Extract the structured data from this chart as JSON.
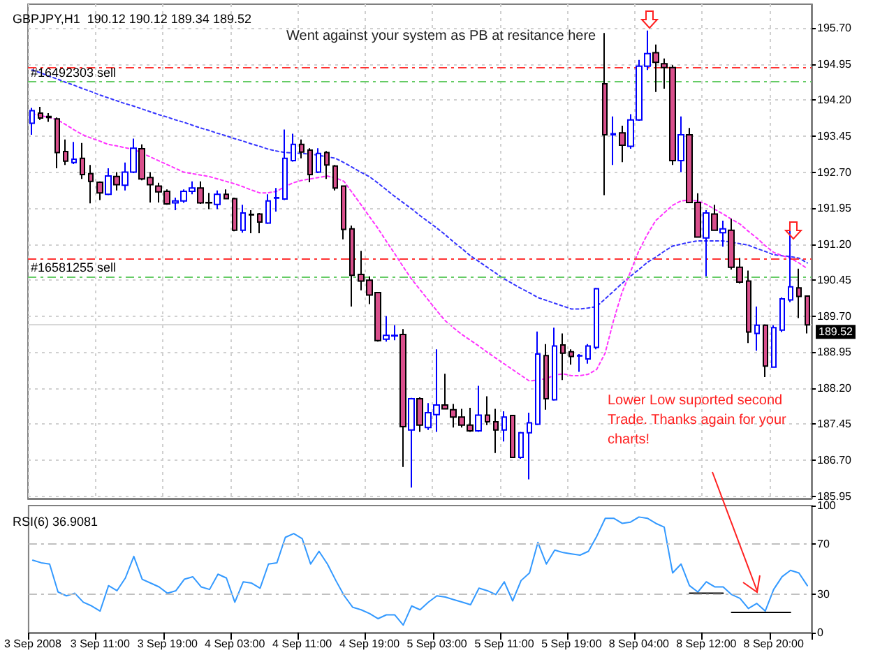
{
  "chart_data": [
    {
      "type": "candlestick",
      "title": "GBPJPY,H1  190.12 190.12 189.34 189.52",
      "annotations": [
        "Went against your system as PB at resitance here",
        "Lower Low suported second Trade. Thanks again for your charts!"
      ],
      "categories": [
        null,
        null,
        null,
        null,
        null,
        null,
        null,
        null,
        null,
        null,
        null,
        null,
        null,
        null,
        null,
        null,
        null,
        null,
        null,
        null,
        null,
        null,
        null,
        null,
        null,
        null,
        null,
        null,
        null,
        null,
        null,
        null,
        null,
        null,
        null,
        null,
        null,
        null,
        null,
        null,
        null,
        null,
        null,
        null,
        null,
        null,
        null,
        null,
        null,
        null,
        null,
        null,
        null,
        null,
        null,
        null,
        null,
        null,
        null,
        null,
        null,
        null,
        null,
        null,
        null,
        null,
        null,
        null,
        null,
        null,
        null,
        null,
        null,
        null,
        null,
        null,
        null,
        null,
        null,
        null,
        null,
        null,
        null,
        null,
        null,
        null,
        null,
        null,
        null,
        null,
        null,
        null,
        null
      ],
      "ylim": [
        185.9,
        196.2
      ],
      "yticks": [
        {
          "value": 185.95,
          "label": "185.95"
        },
        {
          "value": 186.7,
          "label": "186.70"
        },
        {
          "value": 187.45,
          "label": "187.45"
        },
        {
          "value": 188.2,
          "label": "188.20"
        },
        {
          "value": 188.95,
          "label": "188.95"
        },
        {
          "value": 189.7,
          "label": "189.70"
        },
        {
          "value": 190.45,
          "label": "190.45"
        },
        {
          "value": 191.2,
          "label": "191.20"
        },
        {
          "value": 191.95,
          "label": "191.95"
        },
        {
          "value": 192.7,
          "label": "192.70"
        },
        {
          "value": 193.45,
          "label": "193.45"
        },
        {
          "value": 194.2,
          "label": "194.20"
        },
        {
          "value": 194.95,
          "label": "194.95"
        },
        {
          "value": 195.7,
          "label": "195.70"
        }
      ],
      "grid": true,
      "tick_labels": "y",
      "marker": "none",
      "series": [
        {
          "colors": [
            "#0000ff",
            "#d94f8c",
            "#d94f8c",
            "#d94f8c",
            "#d94f8c",
            "#0000ff",
            "#d94f8c",
            "#d94f8c",
            "#d94f8c",
            "#0000ff",
            "#d94f8c",
            "#0000ff",
            "#0000ff",
            "#d94f8c",
            "#d94f8c",
            "#d94f8c",
            "#d94f8c",
            "#0000ff",
            "#0000ff",
            "#0000ff",
            "#d94f8c",
            "#d94f8c",
            "#0000ff",
            "#d94f8c",
            "#d94f8c",
            "#0000ff",
            "#d94f8c",
            "#d94f8c",
            "#0000ff",
            "#0000ff",
            "#0000ff",
            "#0000ff",
            "#d94f8c",
            "#d94f8c",
            "#0000ff",
            "#d94f8c",
            "#d94f8c",
            "#d94f8c",
            "#d94f8c",
            "#d94f8c",
            "#d94f8c",
            "#d94f8c",
            "#0000ff",
            "#0000ff",
            "#d94f8c",
            "#0000ff",
            "#d94f8c",
            "#0000ff",
            "#0000ff",
            "#d94f8c",
            "#d94f8c",
            "#d94f8c",
            "#d94f8c",
            "#0000ff",
            "#d94f8c",
            "#d94f8c",
            "#0000ff",
            "#d94f8c",
            "#0000ff",
            "#0000ff",
            "#0000ff",
            "#d94f8c",
            "#0000ff",
            "#d94f8c",
            "#d94f8c",
            "#0000ff",
            "#0000ff",
            "#0000ff",
            "#d94f8c",
            "#0000ff",
            "#d94f8c",
            "#0000ff",
            "#0000ff",
            "#0000ff",
            "#d94f8c",
            "#d94f8c",
            "#d94f8c",
            "#0000ff",
            "#d94f8c",
            "#d94f8c",
            "#0000ff",
            "#d94f8c",
            "#0000ff",
            "#d94f8c",
            "#d94f8c",
            "#d94f8c",
            "#0000ff",
            "#d94f8c",
            "#0000ff",
            "#0000ff",
            "#0000ff",
            "#d94f8c",
            "#d94f8c"
          ],
          "ohlc": [
            [
              193.72,
              194.04,
              193.48,
              193.98
            ],
            [
              193.93,
              194.06,
              193.79,
              193.83
            ],
            [
              193.86,
              193.93,
              193.75,
              193.84
            ],
            [
              193.81,
              193.84,
              192.78,
              193.11
            ],
            [
              193.13,
              193.38,
              192.85,
              192.93
            ],
            [
              192.9,
              193.33,
              192.87,
              192.97
            ],
            [
              192.99,
              193.31,
              192.56,
              192.65
            ],
            [
              192.67,
              192.85,
              192.05,
              192.51
            ],
            [
              192.49,
              192.51,
              192.12,
              192.27
            ],
            [
              192.24,
              192.78,
              192.22,
              192.62
            ],
            [
              192.61,
              192.7,
              192.32,
              192.44
            ],
            [
              192.43,
              192.9,
              192.32,
              192.7
            ],
            [
              192.7,
              193.4,
              192.68,
              193.2
            ],
            [
              193.19,
              193.28,
              192.53,
              192.56
            ],
            [
              192.59,
              192.7,
              192.07,
              192.44
            ],
            [
              192.41,
              192.48,
              192.07,
              192.29
            ],
            [
              192.3,
              192.34,
              192.02,
              192.04
            ],
            [
              192.06,
              192.17,
              191.91,
              192.1
            ],
            [
              192.1,
              192.34,
              192.06,
              192.3
            ],
            [
              192.3,
              192.51,
              192.24,
              192.37
            ],
            [
              192.37,
              192.51,
              192.04,
              192.06
            ],
            [
              192.07,
              192.27,
              191.93,
              192.06
            ],
            [
              192.03,
              192.32,
              191.93,
              192.24
            ],
            [
              192.24,
              192.34,
              192.14,
              192.15
            ],
            [
              192.15,
              192.17,
              191.47,
              191.49
            ],
            [
              191.49,
              192.02,
              191.44,
              191.85
            ],
            [
              191.82,
              191.91,
              191.43,
              191.81
            ],
            [
              191.83,
              191.85,
              191.43,
              191.66
            ],
            [
              191.64,
              192.24,
              191.62,
              192.1
            ],
            [
              192.16,
              192.37,
              191.88,
              192.17
            ],
            [
              192.14,
              193.59,
              192.12,
              192.99
            ],
            [
              192.94,
              193.5,
              192.92,
              193.28
            ],
            [
              193.28,
              193.38,
              192.99,
              193.12
            ],
            [
              193.16,
              193.2,
              192.49,
              192.65
            ],
            [
              192.7,
              193.2,
              192.68,
              193.09
            ],
            [
              193.11,
              193.14,
              192.56,
              192.85
            ],
            [
              192.83,
              192.85,
              192.32,
              192.37
            ],
            [
              192.41,
              192.41,
              191.3,
              191.51
            ],
            [
              191.52,
              191.59,
              189.9,
              190.55
            ],
            [
              190.57,
              191.06,
              190.24,
              190.43
            ],
            [
              190.45,
              190.53,
              189.95,
              190.14
            ],
            [
              190.19,
              190.19,
              189.17,
              189.19
            ],
            [
              189.22,
              189.7,
              189.17,
              189.3
            ],
            [
              189.29,
              189.51,
              189.2,
              189.3
            ],
            [
              189.32,
              189.43,
              186.56,
              187.4
            ],
            [
              187.33,
              188.0,
              186.13,
              187.98
            ],
            [
              187.98,
              188.01,
              187.29,
              187.43
            ],
            [
              187.38,
              187.89,
              187.33,
              187.69
            ],
            [
              187.65,
              189.01,
              187.29,
              187.85
            ],
            [
              187.85,
              188.5,
              187.77,
              187.77
            ],
            [
              187.75,
              187.87,
              187.38,
              187.6
            ],
            [
              187.6,
              187.77,
              187.38,
              187.43
            ],
            [
              187.43,
              187.79,
              187.29,
              187.31
            ],
            [
              187.31,
              188.25,
              187.29,
              187.64
            ],
            [
              187.64,
              188.03,
              187.43,
              187.5
            ],
            [
              187.5,
              187.77,
              186.85,
              187.33
            ],
            [
              187.33,
              187.72,
              187.09,
              187.6
            ],
            [
              187.63,
              187.63,
              186.76,
              186.76
            ],
            [
              186.76,
              187.29,
              186.73,
              187.27
            ],
            [
              187.27,
              187.69,
              186.3,
              187.48
            ],
            [
              187.45,
              189.38,
              187.43,
              188.91
            ],
            [
              188.88,
              189.12,
              187.75,
              187.98
            ],
            [
              187.96,
              189.46,
              187.94,
              189.08
            ],
            [
              189.1,
              189.34,
              188.37,
              188.93
            ],
            [
              188.96,
              189.01,
              188.69,
              188.86
            ],
            [
              188.87,
              188.91,
              188.54,
              188.88
            ],
            [
              188.81,
              189.12,
              188.71,
              189.08
            ],
            [
              189.05,
              190.29,
              189.01,
              190.27
            ],
            [
              194.54,
              195.6,
              192.22,
              193.48
            ],
            [
              193.48,
              193.86,
              192.85,
              193.5
            ],
            [
              193.52,
              193.67,
              192.91,
              193.26
            ],
            [
              193.24,
              193.91,
              193.19,
              193.79
            ],
            [
              193.79,
              195.04,
              193.77,
              194.91
            ],
            [
              194.91,
              195.65,
              194.83,
              195.17
            ],
            [
              195.19,
              195.36,
              194.37,
              194.99
            ],
            [
              194.96,
              195.07,
              194.44,
              194.88
            ],
            [
              194.88,
              194.93,
              192.85,
              192.94
            ],
            [
              192.94,
              193.86,
              192.7,
              193.48
            ],
            [
              193.48,
              193.62,
              192.07,
              192.07
            ],
            [
              192.07,
              192.26,
              191.35,
              191.35
            ],
            [
              191.33,
              191.91,
              190.53,
              191.85
            ],
            [
              191.83,
              192.02,
              191.49,
              191.49
            ],
            [
              191.44,
              191.69,
              191.15,
              191.52
            ],
            [
              191.49,
              191.73,
              190.67,
              190.72
            ],
            [
              190.72,
              190.91,
              190.38,
              190.41
            ],
            [
              190.43,
              190.65,
              189.14,
              189.37
            ],
            [
              189.34,
              189.9,
              188.98,
              189.51
            ],
            [
              189.51,
              189.53,
              188.43,
              188.66
            ],
            [
              188.64,
              189.51,
              188.64,
              189.46
            ],
            [
              189.41,
              190.09,
              189.37,
              190.06
            ],
            [
              190.04,
              191.49,
              189.99,
              190.31
            ],
            [
              190.29,
              190.69,
              189.66,
              190.11
            ],
            [
              190.12,
              190.12,
              189.34,
              189.52
            ]
          ]
        },
        {
          "type": "line",
          "color": "#3333ff",
          "line_style": "dotted",
          "values": [
            194.83,
            194.77,
            194.7,
            194.64,
            194.57,
            194.51,
            194.44,
            194.38,
            194.31,
            194.25,
            194.19,
            194.13,
            194.08,
            194.02,
            193.96,
            193.9,
            193.85,
            193.79,
            193.74,
            193.68,
            193.62,
            193.57,
            193.51,
            193.46,
            193.4,
            193.35,
            193.29,
            193.24,
            193.18,
            193.14,
            193.11,
            193.1,
            193.09,
            193.08,
            193.05,
            193.02,
            192.99,
            192.9,
            192.8,
            192.7,
            192.61,
            192.48,
            192.34,
            192.2,
            192.07,
            191.94,
            191.8,
            191.67,
            191.54,
            191.4,
            191.25,
            191.11,
            190.96,
            190.84,
            190.72,
            190.6,
            190.48,
            190.38,
            190.28,
            190.19,
            190.09,
            190.03,
            189.97,
            189.91,
            189.85,
            189.85,
            189.87,
            189.9,
            190.06,
            190.22,
            190.38,
            190.53,
            190.67,
            190.82,
            190.93,
            191.05,
            191.16,
            191.2,
            191.24,
            191.27,
            191.27,
            191.27,
            191.27,
            191.24,
            191.21,
            191.18,
            191.11,
            191.05,
            190.98,
            190.96,
            190.94,
            190.91,
            190.81
          ]
        },
        {
          "type": "line",
          "color": "#ff33ff",
          "line_style": "dotted",
          "values": [
            193.92,
            193.88,
            193.84,
            193.79,
            193.69,
            193.58,
            193.48,
            193.41,
            193.35,
            193.28,
            193.25,
            193.21,
            193.18,
            193.1,
            193.02,
            192.94,
            192.86,
            192.78,
            192.7,
            192.67,
            192.64,
            192.61,
            192.56,
            192.51,
            192.46,
            192.4,
            192.33,
            192.27,
            192.27,
            192.3,
            192.4,
            192.48,
            192.53,
            192.56,
            192.59,
            192.62,
            192.58,
            192.51,
            192.27,
            192.03,
            191.78,
            191.54,
            191.27,
            191.01,
            190.74,
            190.48,
            190.26,
            190.04,
            189.82,
            189.61,
            189.46,
            189.32,
            189.2,
            189.08,
            188.95,
            188.83,
            188.71,
            188.59,
            188.47,
            188.35,
            188.37,
            188.4,
            188.47,
            188.5,
            188.46,
            188.46,
            188.49,
            188.59,
            188.93,
            189.61,
            190.19,
            190.62,
            191.06,
            191.4,
            191.69,
            191.85,
            192.01,
            192.1,
            192.12,
            192.1,
            192.03,
            191.93,
            191.83,
            191.72,
            191.62,
            191.47,
            191.33,
            191.17,
            191.03,
            190.96,
            190.91,
            190.81,
            190.69
          ]
        }
      ],
      "ref_lines": [
        {
          "axis": "y",
          "value": 194.88,
          "color": "#ff3333",
          "line_style": "dashed"
        },
        {
          "axis": "y",
          "value": 194.58,
          "color": "#66cc66",
          "line_style": "dashed",
          "label": "#16492303 sell"
        },
        {
          "axis": "y",
          "value": 190.91,
          "color": "#ff3333",
          "line_style": "dashed"
        },
        {
          "axis": "y",
          "value": 190.52,
          "color": "#66cc66",
          "line_style": "dashed",
          "label": "#16581255 sell"
        },
        {
          "axis": "y",
          "value": 189.52,
          "color": "#d8d8d8",
          "line_style": "solid",
          "label": "189.52"
        }
      ]
    },
    {
      "type": "line",
      "title": "RSI(6) 36.9081",
      "categories": [
        "3 Sep 2008",
        null,
        null,
        null,
        null,
        null,
        null,
        null,
        "3 Sep 11:00",
        null,
        null,
        null,
        null,
        null,
        null,
        null,
        "3 Sep 19:00",
        null,
        null,
        null,
        null,
        null,
        null,
        null,
        "4 Sep 03:00",
        null,
        null,
        null,
        null,
        null,
        null,
        null,
        "4 Sep 11:00",
        null,
        null,
        null,
        null,
        null,
        null,
        null,
        "4 Sep 19:00",
        null,
        null,
        null,
        null,
        null,
        null,
        null,
        "5 Sep 03:00",
        null,
        null,
        null,
        null,
        null,
        null,
        null,
        "5 Sep 11:00",
        null,
        null,
        null,
        null,
        null,
        null,
        null,
        "5 Sep 19:00",
        null,
        null,
        null,
        null,
        null,
        null,
        null,
        "8 Sep 04:00",
        null,
        null,
        null,
        null,
        null,
        null,
        null,
        "8 Sep 12:00",
        null,
        null,
        null,
        null,
        null,
        null,
        null,
        "8 Sep 20:00",
        null,
        null,
        null,
        null
      ],
      "ylim": [
        0,
        100
      ],
      "yticks": [
        0,
        30,
        70,
        100
      ],
      "grid": false,
      "marker": "none",
      "series": [
        {
          "color": "#3399ff",
          "values": [
            57,
            55,
            54,
            32,
            29,
            31,
            24,
            21,
            17,
            37,
            33,
            43,
            60,
            42,
            39,
            36,
            31,
            33,
            42,
            44,
            36,
            34,
            46,
            43,
            24,
            40,
            39,
            35,
            54,
            55,
            75,
            78,
            74,
            54,
            64,
            54,
            41,
            29,
            20,
            18,
            15,
            11,
            14,
            14,
            6,
            21,
            18,
            24,
            29,
            28,
            26,
            24,
            22,
            35,
            33,
            30,
            40,
            25,
            41,
            47,
            71,
            54,
            65,
            63,
            62,
            61,
            64,
            76,
            90,
            90,
            86,
            87,
            91,
            90,
            86,
            83,
            47,
            54,
            37,
            32,
            40,
            36,
            36,
            30,
            27,
            19,
            23,
            17,
            34,
            44,
            49,
            47,
            37
          ]
        },
        {
          "color": "#000000",
          "values": [
            null,
            null,
            null,
            null,
            null,
            null,
            null,
            null,
            null,
            null,
            null,
            null,
            null,
            null,
            null,
            null,
            null,
            null,
            null,
            null,
            null,
            null,
            null,
            null,
            null,
            null,
            null,
            null,
            null,
            null,
            null,
            null,
            null,
            null,
            null,
            null,
            null,
            null,
            null,
            null,
            null,
            null,
            null,
            null,
            null,
            null,
            null,
            null,
            null,
            null,
            null,
            null,
            null,
            null,
            null,
            null,
            null,
            null,
            null,
            null,
            null,
            null,
            null,
            null,
            null,
            null,
            null,
            null,
            null,
            null,
            null,
            null,
            null,
            null,
            null,
            null,
            null,
            null,
            31,
            31,
            31,
            31,
            31,
            null,
            null,
            null,
            null,
            null,
            null,
            null,
            null,
            null,
            null
          ]
        },
        {
          "color": "#000000",
          "values": [
            null,
            null,
            null,
            null,
            null,
            null,
            null,
            null,
            null,
            null,
            null,
            null,
            null,
            null,
            null,
            null,
            null,
            null,
            null,
            null,
            null,
            null,
            null,
            null,
            null,
            null,
            null,
            null,
            null,
            null,
            null,
            null,
            null,
            null,
            null,
            null,
            null,
            null,
            null,
            null,
            null,
            null,
            null,
            null,
            null,
            null,
            null,
            null,
            null,
            null,
            null,
            null,
            null,
            null,
            null,
            null,
            null,
            null,
            null,
            null,
            null,
            null,
            null,
            null,
            null,
            null,
            null,
            null,
            null,
            null,
            null,
            null,
            null,
            null,
            null,
            null,
            null,
            null,
            null,
            null,
            null,
            null,
            null,
            16,
            16,
            16,
            16,
            16,
            16,
            16,
            16,
            null,
            null
          ]
        }
      ],
      "ref_lines": [
        {
          "axis": "y",
          "value": 70,
          "color": "#c0c0c0",
          "line_style": "dashed"
        },
        {
          "axis": "y",
          "value": 30,
          "color": "#c0c0c0",
          "line_style": "dashed"
        }
      ]
    }
  ]
}
